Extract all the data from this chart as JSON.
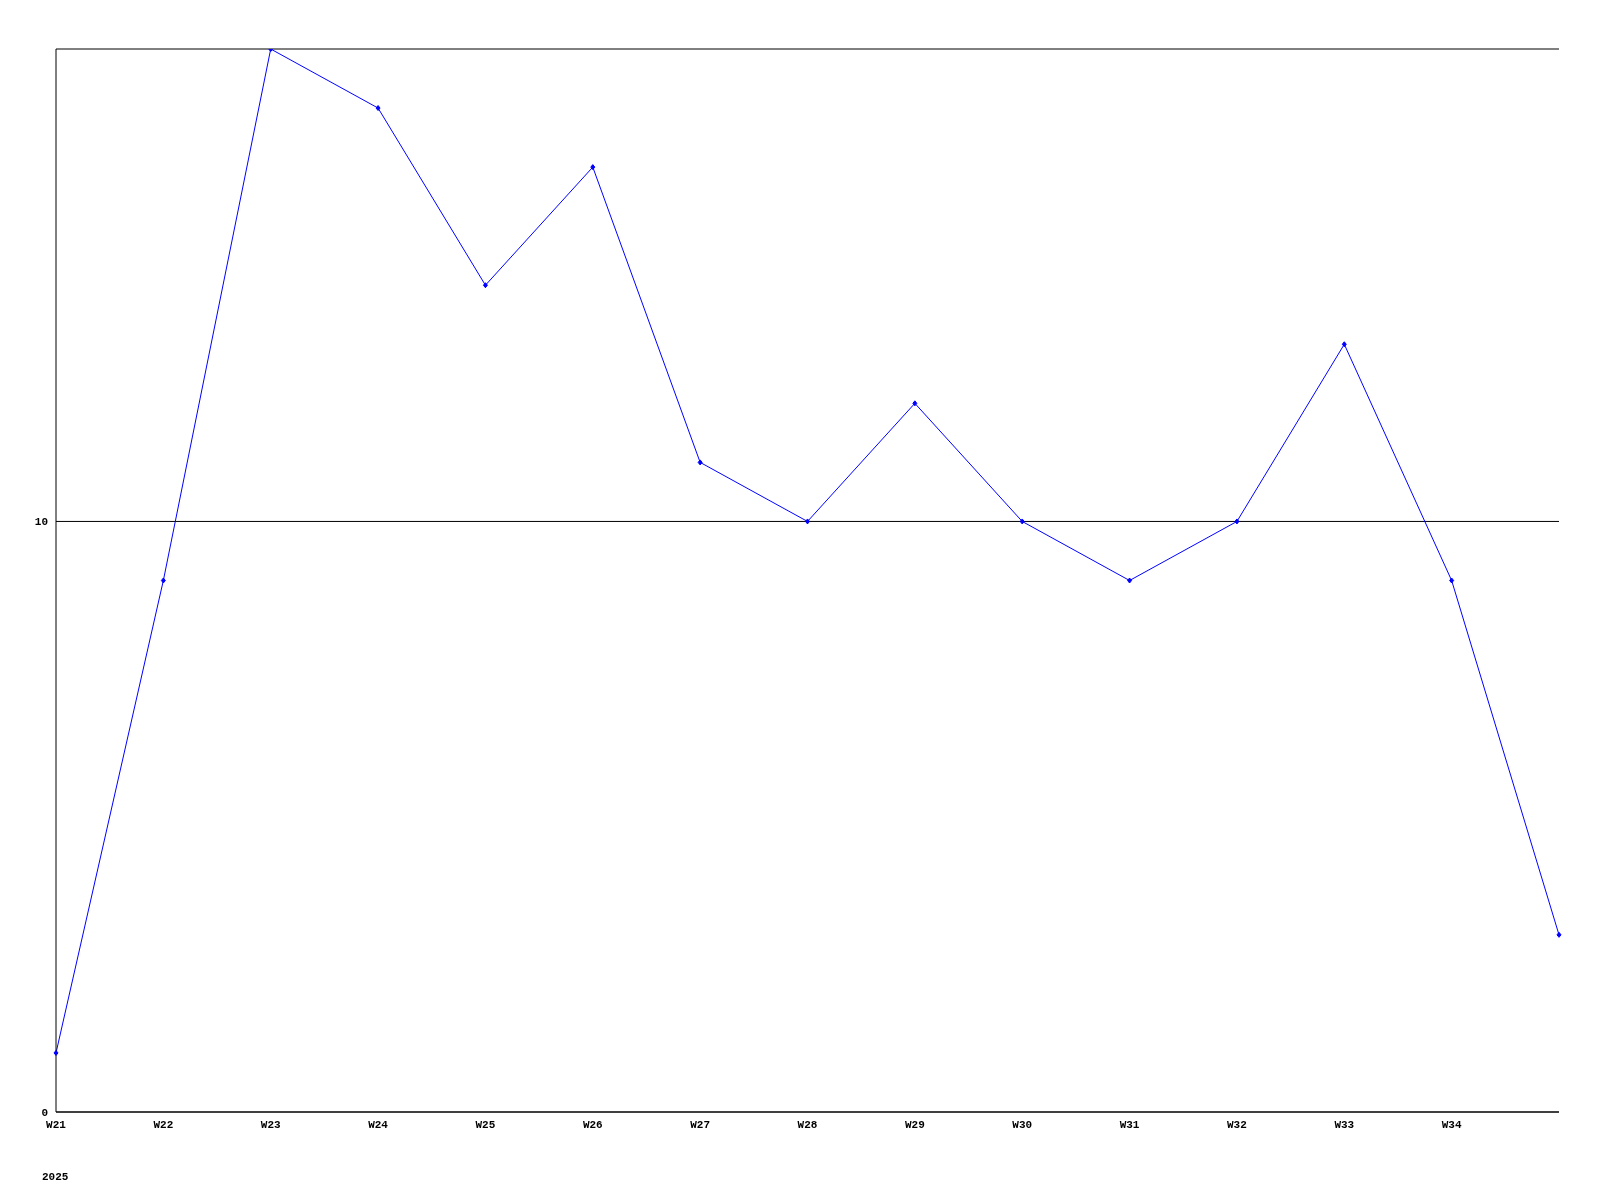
{
  "chart_data": {
    "type": "line",
    "categories": [
      "W21",
      "W22",
      "W23",
      "W24",
      "W25",
      "W26",
      "W27",
      "W28",
      "W29",
      "W30",
      "W31",
      "W32",
      "W33",
      "W34",
      null
    ],
    "series": [
      {
        "color": "#0000ff",
        "values": [
          1,
          9,
          18,
          17,
          14,
          16,
          11,
          10,
          12,
          10,
          9,
          10,
          13,
          9,
          3
        ]
      }
    ],
    "ylim": [
      0,
      18
    ],
    "yticks": [
      0,
      10
    ],
    "grid": "y",
    "marker": "diamond",
    "line_style": "solid",
    "legend": false,
    "annotations": [
      "2025"
    ]
  }
}
